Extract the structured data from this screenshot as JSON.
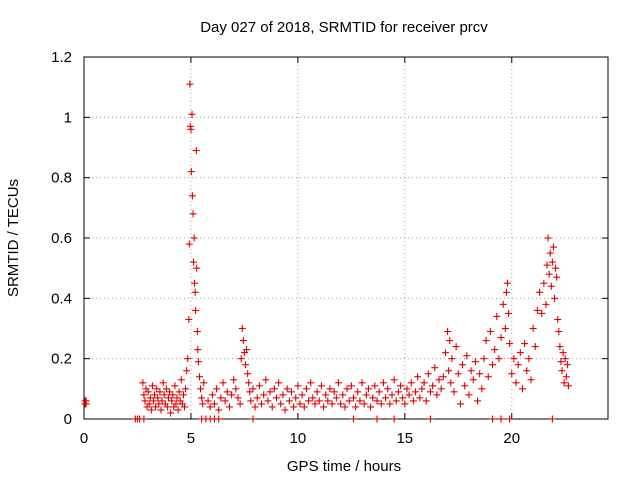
{
  "chart_data": {
    "type": "scatter",
    "title": "Day 027 of 2018, SRMTID for receiver prcv",
    "xlabel": "GPS time / hours",
    "ylabel": "SRMTID / TECUs",
    "xlim": [
      0,
      24.5
    ],
    "ylim": [
      0,
      1.2
    ],
    "xticks": [
      0,
      5,
      10,
      15,
      20
    ],
    "xtick_labels": [
      "0",
      "5",
      "10",
      "15",
      "20"
    ],
    "yticks": [
      0,
      0.2,
      0.4,
      0.6,
      0.8,
      1.0,
      1.2
    ],
    "ytick_labels": [
      "0",
      "0.2",
      "0.4",
      "0.6",
      "0.8",
      "1",
      "1.2"
    ],
    "grid": true,
    "marker": "+",
    "color": "#e00000",
    "series": [
      {
        "name": "SRMTID",
        "points": [
          [
            0.05,
            0.06
          ],
          [
            0.05,
            0.05
          ],
          [
            0.1,
            0.06
          ],
          [
            0.1,
            0.05
          ],
          [
            2.4,
            0.0
          ],
          [
            2.5,
            0.0
          ],
          [
            2.6,
            0.0
          ],
          [
            2.8,
            0.0
          ],
          [
            2.75,
            0.12
          ],
          [
            2.8,
            0.08
          ],
          [
            2.85,
            0.06
          ],
          [
            2.9,
            0.1
          ],
          [
            2.95,
            0.04
          ],
          [
            3.0,
            0.09
          ],
          [
            3.05,
            0.05
          ],
          [
            3.1,
            0.07
          ],
          [
            3.15,
            0.03
          ],
          [
            3.2,
            0.11
          ],
          [
            3.25,
            0.06
          ],
          [
            3.3,
            0.08
          ],
          [
            3.35,
            0.04
          ],
          [
            3.4,
            0.1
          ],
          [
            3.45,
            0.07
          ],
          [
            3.5,
            0.05
          ],
          [
            3.55,
            0.09
          ],
          [
            3.6,
            0.03
          ],
          [
            3.65,
            0.06
          ],
          [
            3.7,
            0.12
          ],
          [
            3.75,
            0.08
          ],
          [
            3.8,
            0.05
          ],
          [
            3.85,
            0.1
          ],
          [
            3.9,
            0.04
          ],
          [
            3.95,
            0.07
          ],
          [
            4.0,
            0.09
          ],
          [
            4.05,
            0.02
          ],
          [
            4.1,
            0.06
          ],
          [
            4.15,
            0.08
          ],
          [
            4.2,
            0.04
          ],
          [
            4.25,
            0.11
          ],
          [
            4.3,
            0.05
          ],
          [
            4.35,
            0.07
          ],
          [
            4.4,
            0.03
          ],
          [
            4.45,
            0.09
          ],
          [
            4.5,
            0.06
          ],
          [
            4.55,
            0.13
          ],
          [
            4.6,
            0.05
          ],
          [
            4.65,
            0.08
          ],
          [
            4.7,
            0.04
          ],
          [
            4.75,
            0.1
          ],
          [
            4.8,
            0.16
          ],
          [
            4.85,
            0.2
          ],
          [
            4.9,
            0.33
          ],
          [
            4.92,
            0.58
          ],
          [
            4.95,
            1.11
          ],
          [
            4.97,
            0.97
          ],
          [
            5.0,
            0.96
          ],
          [
            5.02,
            0.82
          ],
          [
            5.05,
            1.01
          ],
          [
            5.07,
            0.74
          ],
          [
            5.1,
            0.68
          ],
          [
            5.12,
            0.52
          ],
          [
            5.15,
            0.6
          ],
          [
            5.17,
            0.45
          ],
          [
            5.2,
            0.42
          ],
          [
            5.22,
            0.36
          ],
          [
            5.25,
            0.89
          ],
          [
            5.27,
            0.5
          ],
          [
            5.3,
            0.29
          ],
          [
            5.32,
            0.23
          ],
          [
            5.35,
            0.19
          ],
          [
            5.4,
            0.14
          ],
          [
            5.45,
            0.1
          ],
          [
            5.5,
            0.07
          ],
          [
            5.55,
            0.05
          ],
          [
            5.6,
            0.12
          ],
          [
            5.5,
            0.0
          ],
          [
            5.7,
            0.0
          ],
          [
            5.9,
            0.0
          ],
          [
            6.1,
            0.0
          ],
          [
            6.3,
            0.0
          ],
          [
            5.8,
            0.06
          ],
          [
            5.9,
            0.04
          ],
          [
            6.0,
            0.08
          ],
          [
            6.1,
            0.05
          ],
          [
            6.2,
            0.1
          ],
          [
            6.3,
            0.03
          ],
          [
            6.4,
            0.07
          ],
          [
            6.5,
            0.12
          ],
          [
            6.6,
            0.06
          ],
          [
            6.7,
            0.09
          ],
          [
            6.8,
            0.04
          ],
          [
            6.9,
            0.08
          ],
          [
            7.0,
            0.13
          ],
          [
            7.1,
            0.1
          ],
          [
            7.2,
            0.07
          ],
          [
            7.3,
            0.05
          ],
          [
            7.35,
            0.2
          ],
          [
            7.4,
            0.3
          ],
          [
            7.45,
            0.26
          ],
          [
            7.5,
            0.22
          ],
          [
            7.55,
            0.18
          ],
          [
            7.6,
            0.23
          ],
          [
            7.65,
            0.15
          ],
          [
            7.7,
            0.12
          ],
          [
            7.75,
            0.09
          ],
          [
            7.8,
            0.06
          ],
          [
            7.9,
            0.1
          ],
          [
            8.0,
            0.04
          ],
          [
            8.1,
            0.07
          ],
          [
            8.2,
            0.11
          ],
          [
            8.3,
            0.05
          ],
          [
            8.4,
            0.08
          ],
          [
            8.5,
            0.13
          ],
          [
            8.6,
            0.06
          ],
          [
            8.7,
            0.09
          ],
          [
            8.8,
            0.04
          ],
          [
            8.9,
            0.1
          ],
          [
            9.0,
            0.07
          ],
          [
            9.1,
            0.12
          ],
          [
            9.2,
            0.05
          ],
          [
            9.3,
            0.08
          ],
          [
            9.4,
            0.03
          ],
          [
            9.5,
            0.1
          ],
          [
            9.6,
            0.06
          ],
          [
            9.7,
            0.09
          ],
          [
            9.8,
            0.04
          ],
          [
            9.9,
            0.07
          ],
          [
            10.0,
            0.11
          ],
          [
            10.1,
            0.05
          ],
          [
            10.2,
            0.08
          ],
          [
            10.3,
            0.04
          ],
          [
            10.4,
            0.1
          ],
          [
            10.5,
            0.06
          ],
          [
            10.6,
            0.12
          ],
          [
            10.7,
            0.07
          ],
          [
            10.8,
            0.05
          ],
          [
            10.9,
            0.09
          ],
          [
            11.0,
            0.06
          ],
          [
            11.1,
            0.11
          ],
          [
            11.2,
            0.04
          ],
          [
            11.3,
            0.08
          ],
          [
            11.4,
            0.06
          ],
          [
            11.5,
            0.1
          ],
          [
            11.6,
            0.05
          ],
          [
            11.7,
            0.09
          ],
          [
            11.8,
            0.07
          ],
          [
            11.9,
            0.12
          ],
          [
            12.0,
            0.05
          ],
          [
            12.1,
            0.08
          ],
          [
            12.2,
            0.04
          ],
          [
            12.3,
            0.1
          ],
          [
            12.4,
            0.06
          ],
          [
            12.5,
            0.11
          ],
          [
            12.6,
            0.07
          ],
          [
            12.7,
            0.04
          ],
          [
            12.8,
            0.09
          ],
          [
            12.9,
            0.06
          ],
          [
            13.0,
            0.12
          ],
          [
            13.1,
            0.05
          ],
          [
            13.2,
            0.08
          ],
          [
            13.3,
            0.1
          ],
          [
            13.4,
            0.04
          ],
          [
            13.5,
            0.07
          ],
          [
            13.6,
            0.11
          ],
          [
            13.7,
            0.06
          ],
          [
            13.8,
            0.09
          ],
          [
            13.9,
            0.05
          ],
          [
            14.0,
            0.12
          ],
          [
            14.1,
            0.07
          ],
          [
            14.2,
            0.1
          ],
          [
            14.3,
            0.05
          ],
          [
            14.4,
            0.08
          ],
          [
            14.5,
            0.13
          ],
          [
            14.6,
            0.06
          ],
          [
            14.7,
            0.09
          ],
          [
            14.8,
            0.11
          ],
          [
            14.9,
            0.07
          ],
          [
            15.0,
            0.05
          ],
          [
            15.1,
            0.1
          ],
          [
            15.2,
            0.08
          ],
          [
            15.3,
            0.12
          ],
          [
            15.4,
            0.06
          ],
          [
            15.5,
            0.09
          ],
          [
            15.6,
            0.14
          ],
          [
            15.7,
            0.07
          ],
          [
            15.8,
            0.1
          ],
          [
            15.9,
            0.12
          ],
          [
            16.0,
            0.06
          ],
          [
            16.1,
            0.15
          ],
          [
            16.2,
            0.09
          ],
          [
            16.3,
            0.11
          ],
          [
            16.4,
            0.17
          ],
          [
            16.5,
            0.08
          ],
          [
            16.6,
            0.13
          ],
          [
            16.7,
            0.1
          ],
          [
            16.8,
            0.14
          ],
          [
            7.9,
            0.0
          ],
          [
            12.6,
            0.0
          ],
          [
            13.7,
            0.0
          ],
          [
            14.5,
            0.0
          ],
          [
            16.2,
            0.0
          ],
          [
            16.9,
            0.22
          ],
          [
            17.0,
            0.29
          ],
          [
            17.05,
            0.16
          ],
          [
            17.1,
            0.26
          ],
          [
            17.15,
            0.12
          ],
          [
            17.2,
            0.2
          ],
          [
            17.3,
            0.09
          ],
          [
            17.4,
            0.24
          ],
          [
            17.5,
            0.15
          ],
          [
            17.6,
            0.05
          ],
          [
            17.7,
            0.18
          ],
          [
            17.8,
            0.11
          ],
          [
            17.9,
            0.21
          ],
          [
            18.0,
            0.08
          ],
          [
            18.1,
            0.16
          ],
          [
            18.2,
            0.13
          ],
          [
            18.3,
            0.19
          ],
          [
            18.4,
            0.06
          ],
          [
            18.5,
            0.15
          ],
          [
            18.6,
            0.1
          ],
          [
            18.7,
            0.2
          ],
          [
            18.8,
            0.26
          ],
          [
            18.9,
            0.14
          ],
          [
            19.0,
            0.29
          ],
          [
            19.1,
            0.18
          ],
          [
            19.2,
            0.23
          ],
          [
            19.3,
            0.34
          ],
          [
            19.4,
            0.2
          ],
          [
            19.5,
            0.27
          ],
          [
            19.6,
            0.38
          ],
          [
            19.7,
            0.3
          ],
          [
            19.75,
            0.42
          ],
          [
            19.8,
            0.45
          ],
          [
            19.85,
            0.35
          ],
          [
            19.9,
            0.25
          ],
          [
            20.0,
            0.15
          ],
          [
            20.1,
            0.2
          ],
          [
            20.2,
            0.12
          ],
          [
            20.3,
            0.18
          ],
          [
            20.4,
            0.22
          ],
          [
            20.5,
            0.1
          ],
          [
            20.6,
            0.25
          ],
          [
            20.7,
            0.16
          ],
          [
            20.8,
            0.2
          ],
          [
            20.9,
            0.13
          ],
          [
            21.0,
            0.3
          ],
          [
            21.1,
            0.24
          ],
          [
            21.2,
            0.36
          ],
          [
            21.3,
            0.42
          ],
          [
            21.4,
            0.35
          ],
          [
            21.5,
            0.45
          ],
          [
            21.6,
            0.38
          ],
          [
            21.65,
            0.51
          ],
          [
            21.7,
            0.6
          ],
          [
            21.75,
            0.48
          ],
          [
            21.8,
            0.55
          ],
          [
            21.85,
            0.44
          ],
          [
            21.9,
            0.52
          ],
          [
            21.95,
            0.57
          ],
          [
            22.0,
            0.4
          ],
          [
            22.05,
            0.5
          ],
          [
            22.1,
            0.47
          ],
          [
            22.15,
            0.33
          ],
          [
            22.2,
            0.29
          ],
          [
            22.25,
            0.24
          ],
          [
            22.3,
            0.19
          ],
          [
            22.35,
            0.16
          ],
          [
            22.4,
            0.22
          ],
          [
            22.45,
            0.12
          ],
          [
            22.5,
            0.2
          ],
          [
            22.55,
            0.14
          ],
          [
            22.6,
            0.18
          ],
          [
            22.65,
            0.11
          ],
          [
            19.1,
            0.0
          ],
          [
            19.5,
            0.0
          ],
          [
            19.9,
            0.0
          ],
          [
            21.9,
            0.0
          ]
        ]
      }
    ]
  }
}
